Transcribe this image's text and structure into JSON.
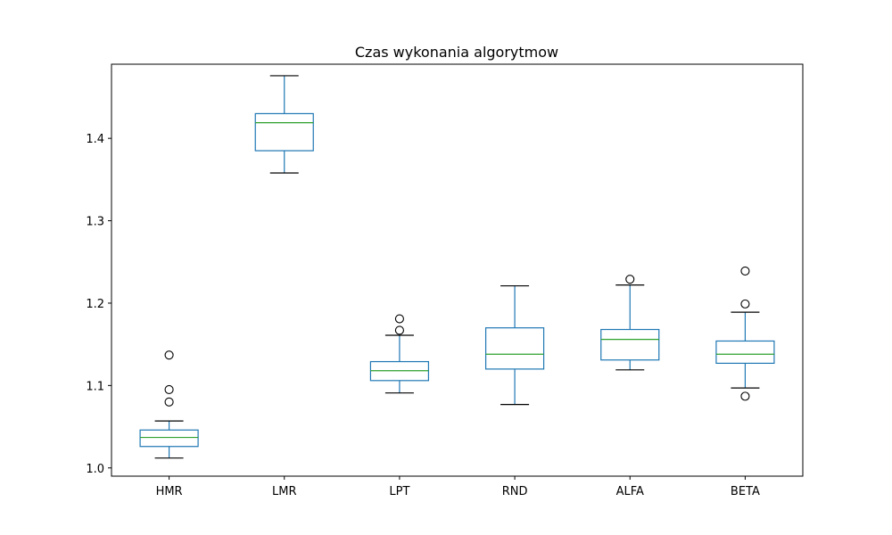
{
  "chart_data": {
    "type": "box",
    "title": "Czas wykonania algorytmow",
    "xlabel": "",
    "ylabel": "",
    "ylim": [
      0.99,
      1.49
    ],
    "yticks": [
      1.0,
      1.1,
      1.2,
      1.3,
      1.4
    ],
    "ytick_labels": [
      "1.0",
      "1.1",
      "1.2",
      "1.3",
      "1.4"
    ],
    "grid": false,
    "colors": {
      "box": "#1f77b4",
      "median": "#2ca02c",
      "whisker_cap": "#000000",
      "outlier": "#000000"
    },
    "categories": [
      "HMR",
      "LMR",
      "LPT",
      "RND",
      "ALFA",
      "BETA"
    ],
    "boxes": [
      {
        "name": "HMR",
        "whisker_low": 1.012,
        "q1": 1.026,
        "median": 1.037,
        "q3": 1.046,
        "whisker_high": 1.057,
        "outliers": [
          1.08,
          1.095,
          1.137
        ]
      },
      {
        "name": "LMR",
        "whisker_low": 1.358,
        "q1": 1.385,
        "median": 1.419,
        "q3": 1.43,
        "whisker_high": 1.476,
        "outliers": []
      },
      {
        "name": "LPT",
        "whisker_low": 1.091,
        "q1": 1.106,
        "median": 1.118,
        "q3": 1.129,
        "whisker_high": 1.161,
        "outliers": [
          1.167,
          1.181
        ]
      },
      {
        "name": "RND",
        "whisker_low": 1.077,
        "q1": 1.12,
        "median": 1.138,
        "q3": 1.17,
        "whisker_high": 1.221,
        "outliers": []
      },
      {
        "name": "ALFA",
        "whisker_low": 1.119,
        "q1": 1.131,
        "median": 1.156,
        "q3": 1.168,
        "whisker_high": 1.222,
        "outliers": [
          1.229
        ]
      },
      {
        "name": "BETA",
        "whisker_low": 1.097,
        "q1": 1.127,
        "median": 1.138,
        "q3": 1.154,
        "whisker_high": 1.189,
        "outliers": [
          1.087,
          1.199,
          1.239
        ]
      }
    ]
  }
}
